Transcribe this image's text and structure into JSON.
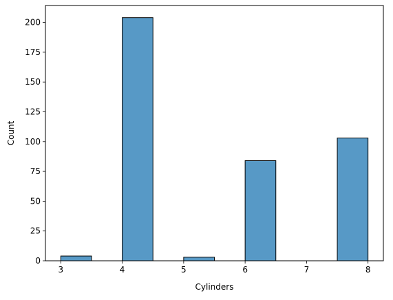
{
  "chart_data": {
    "type": "bar",
    "title": "",
    "xlabel": "Cylinders",
    "ylabel": "Count",
    "xlim": [
      2.75,
      8.25
    ],
    "ylim": [
      0,
      214.2
    ],
    "xticks": [
      "3",
      "4",
      "5",
      "6",
      "7",
      "8"
    ],
    "yticks": [
      "0",
      "25",
      "50",
      "75",
      "100",
      "125",
      "150",
      "175",
      "200"
    ],
    "bins": [
      {
        "start": 3.0,
        "end": 3.5,
        "value": 4
      },
      {
        "start": 3.5,
        "end": 4.0,
        "value": 0
      },
      {
        "start": 4.0,
        "end": 4.5,
        "value": 204
      },
      {
        "start": 4.5,
        "end": 5.0,
        "value": 0
      },
      {
        "start": 5.0,
        "end": 5.5,
        "value": 3
      },
      {
        "start": 5.5,
        "end": 6.0,
        "value": 0
      },
      {
        "start": 6.0,
        "end": 6.5,
        "value": 84
      },
      {
        "start": 6.5,
        "end": 7.0,
        "value": 0
      },
      {
        "start": 7.0,
        "end": 7.5,
        "value": 0
      },
      {
        "start": 7.5,
        "end": 8.0,
        "value": 103
      }
    ],
    "bar_color": "#5799c6",
    "edge_color": "#000000",
    "grid": false,
    "legend": false
  }
}
